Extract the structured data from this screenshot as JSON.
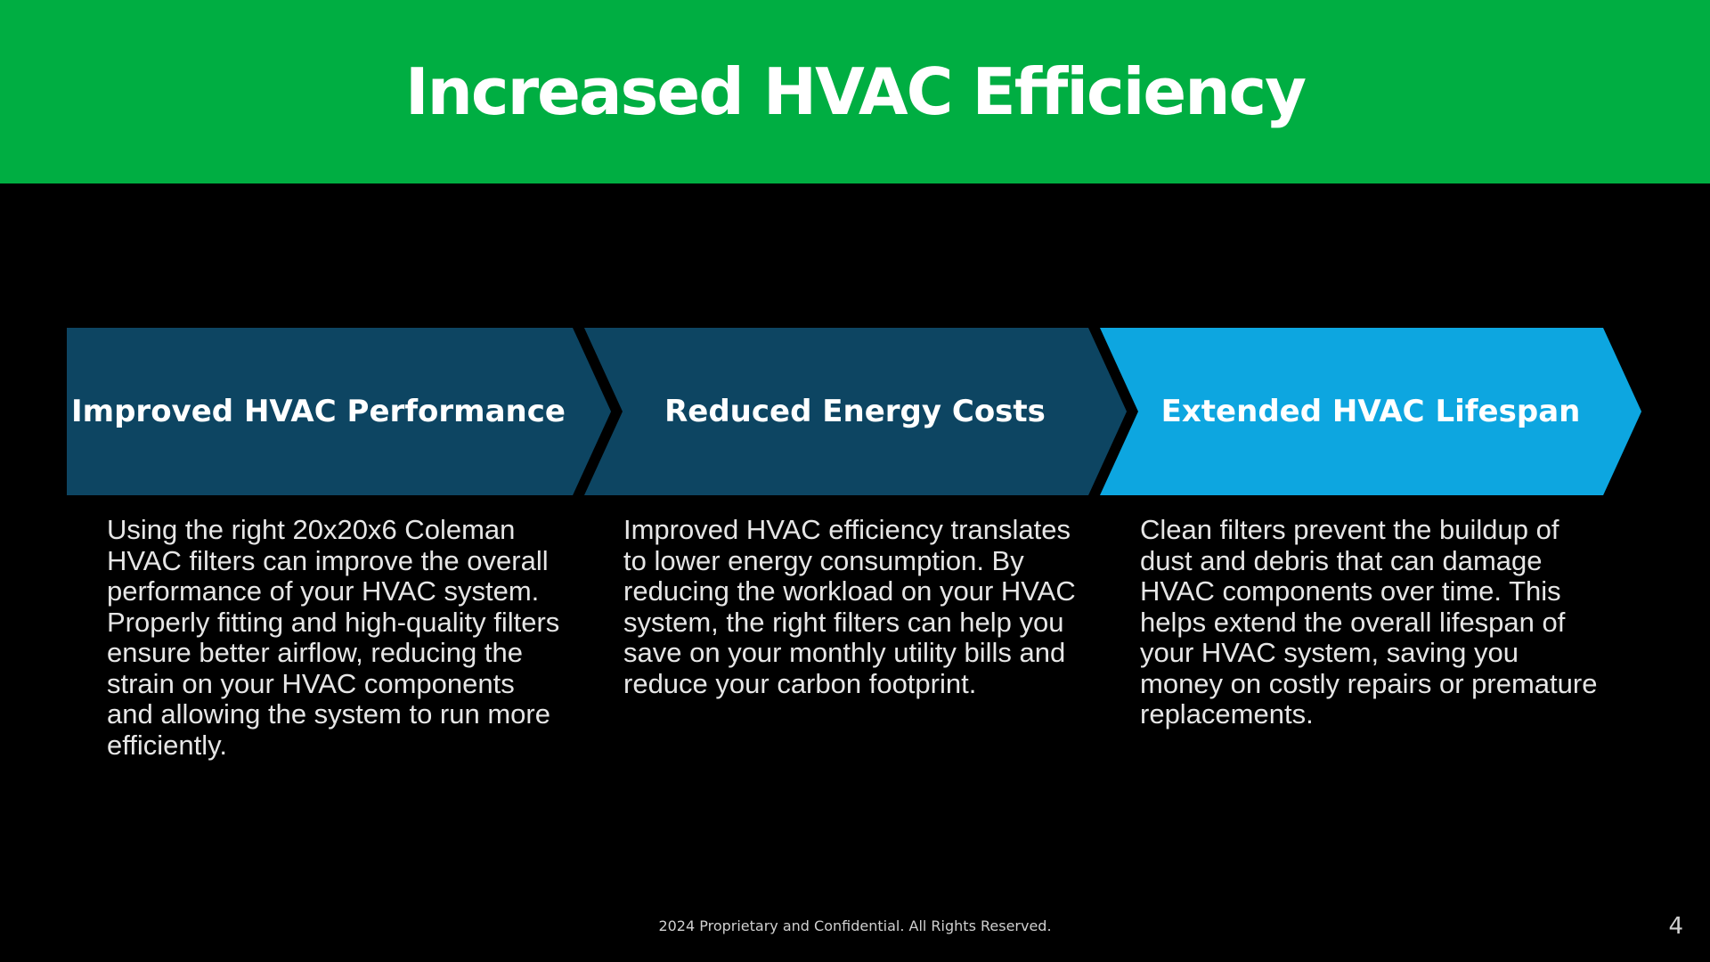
{
  "slide": {
    "title": "Increased HVAC Efficiency",
    "footer": "2024 Proprietary and Confidential. All Rights Reserved.",
    "page_number": "4"
  },
  "colors": {
    "header_green": "#00AE42",
    "dark_blue": "#0E4562",
    "highlight_blue": "#0FA6E0",
    "background": "#000000",
    "text_white": "#FFFFFF"
  },
  "steps": [
    {
      "title": "Improved HVAC Performance",
      "description": "Using the right 20x20x6 Coleman HVAC filters can improve the overall performance of your HVAC system. Properly fitting and high-quality filters ensure better airflow, reducing the strain on your HVAC components and allowing the system to run more efficiently."
    },
    {
      "title": "Reduced Energy Costs",
      "description": "Improved HVAC efficiency translates to lower energy consumption. By reducing the workload on your HVAC system, the right filters can help you save on your monthly utility bills and reduce your carbon footprint."
    },
    {
      "title": "Extended HVAC Lifespan",
      "description": "Clean filters prevent the buildup of dust and debris that can damage HVAC components over time. This helps extend the overall lifespan of your HVAC system, saving you money on costly repairs or premature replacements."
    }
  ]
}
